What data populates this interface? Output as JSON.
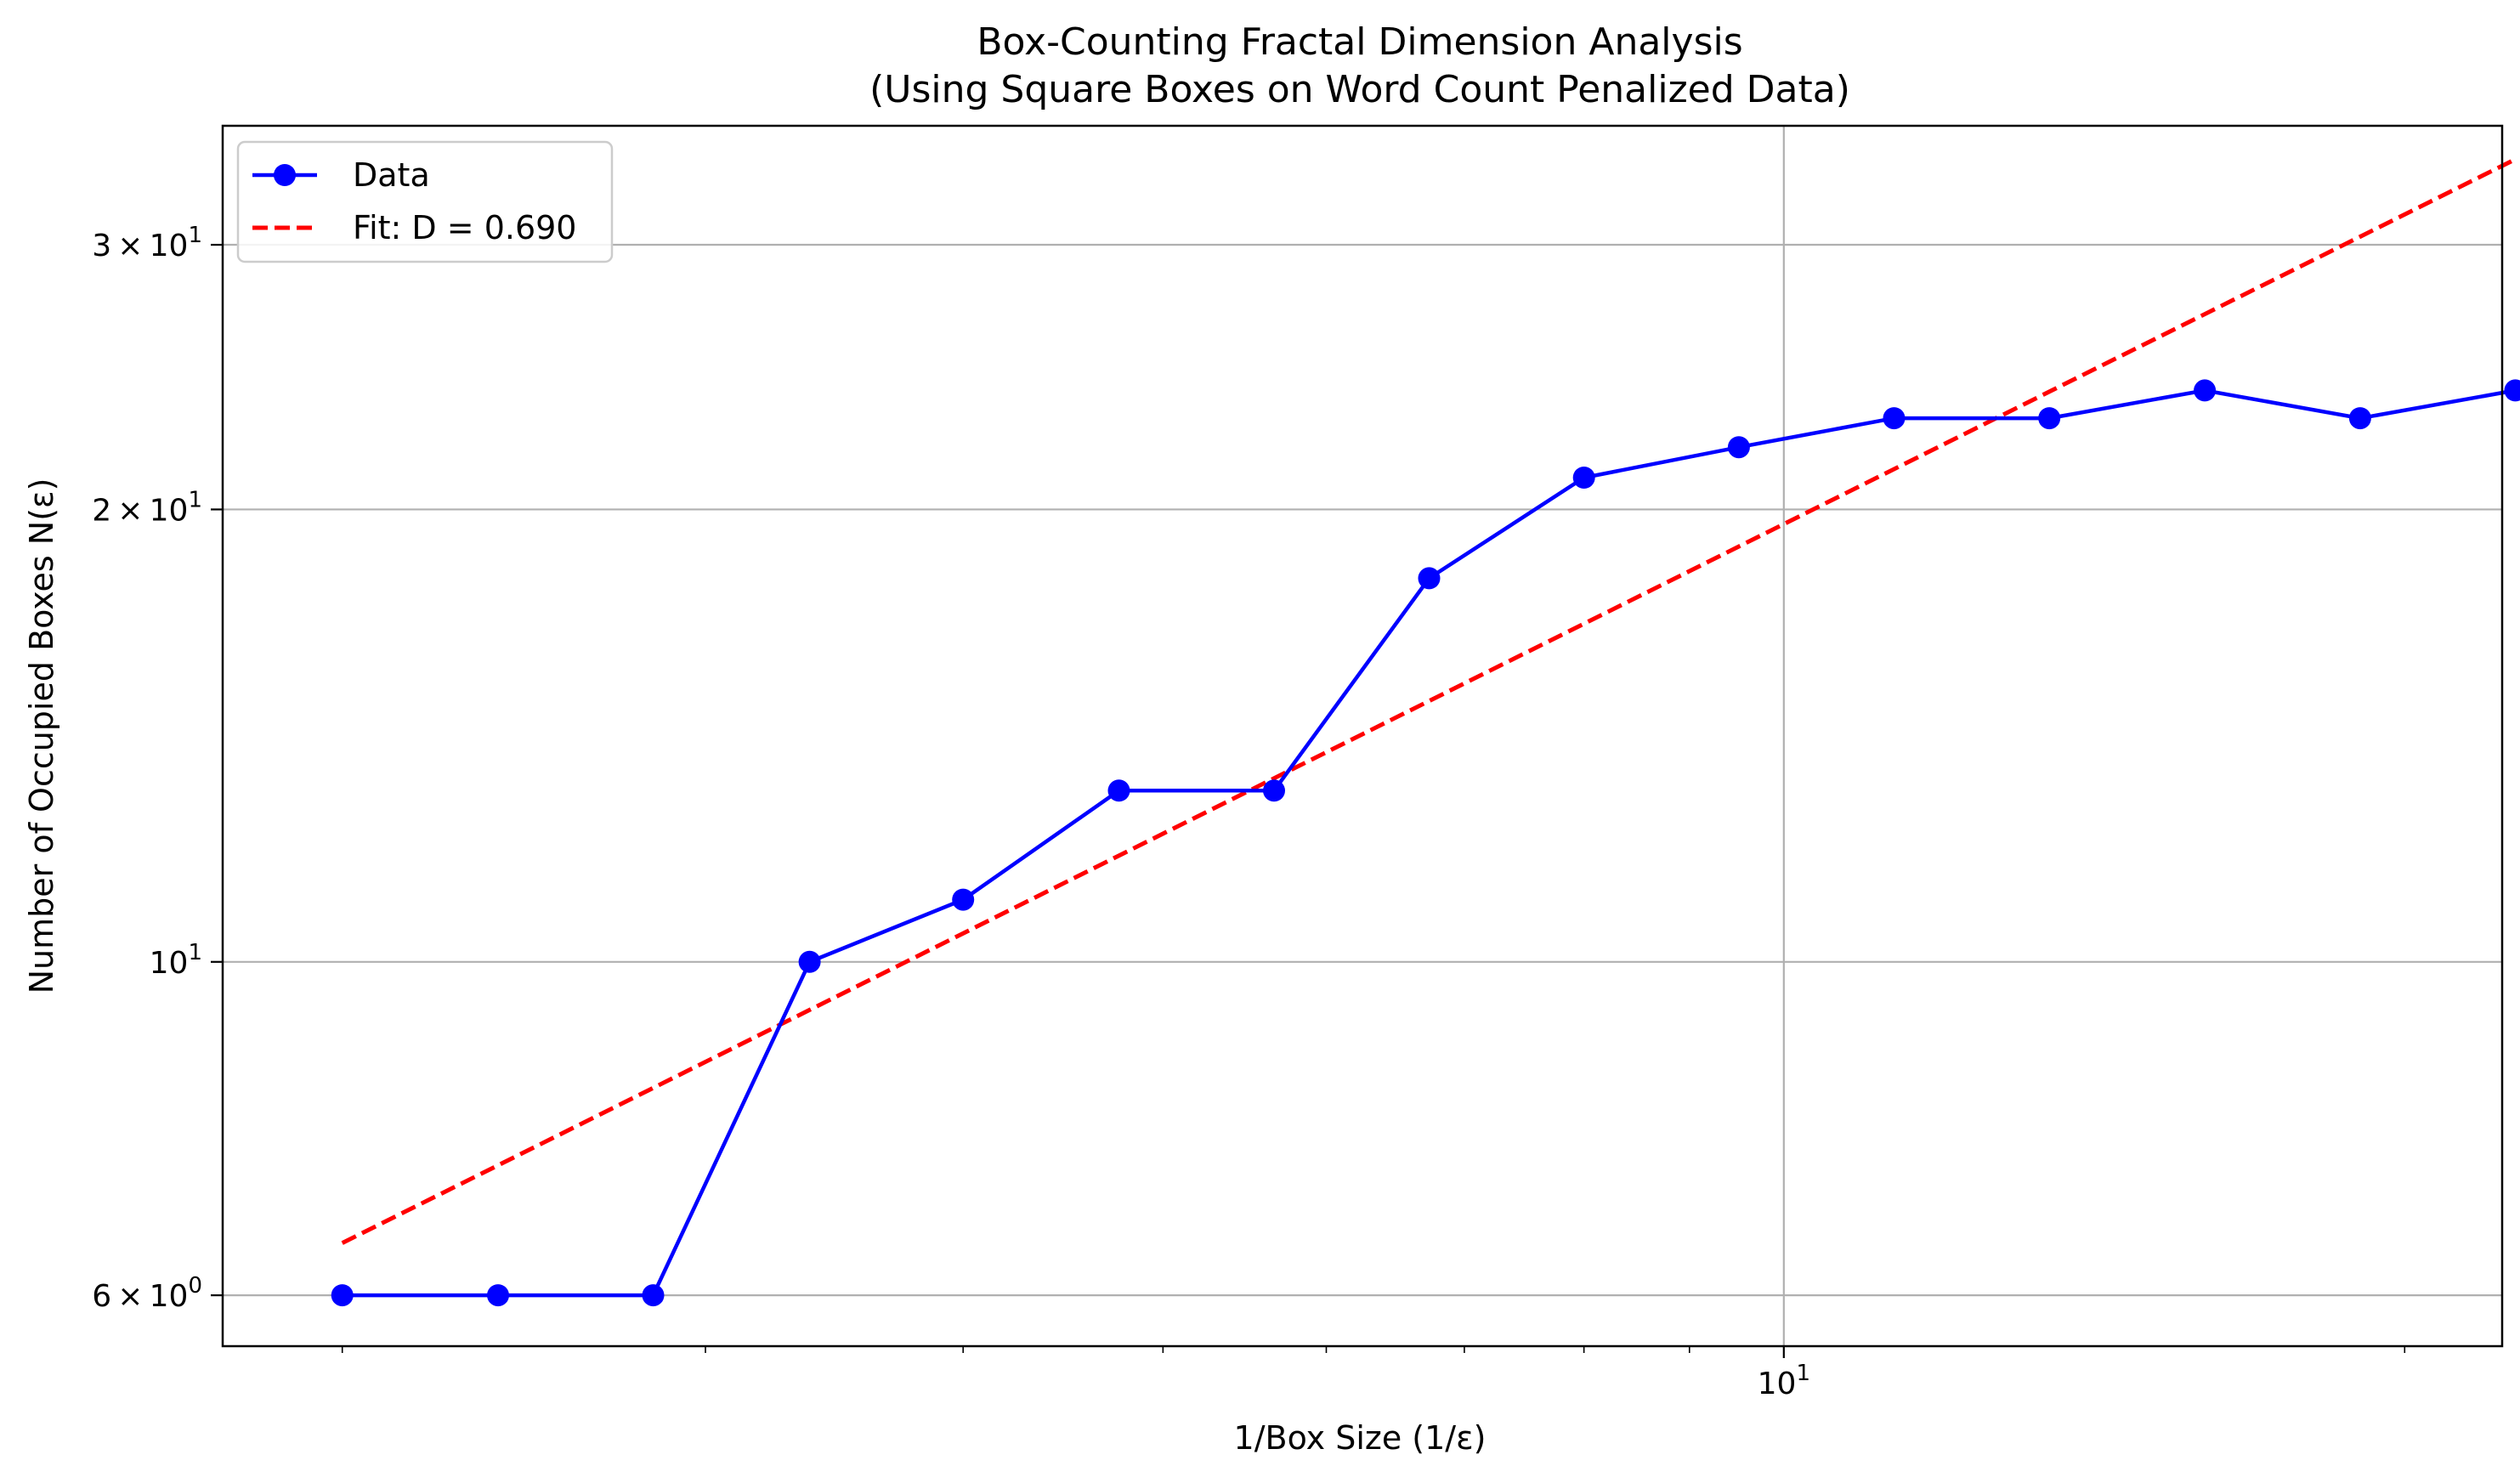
{
  "chart_data": {
    "type": "line",
    "title": "Box-Counting Fractal Dimension Analysis",
    "subtitle": "(Using Square Boxes on Word Count Penalized Data)",
    "xlabel": "1/Box Size (1/ε)",
    "ylabel": "Number of Occupied Boxes N(ε)",
    "xscale": "log",
    "yscale": "log",
    "xlim": [
      1.75,
      22.3
    ],
    "ylim": [
      5.55,
      36.0
    ],
    "grid": "major",
    "legend_position": "top-left",
    "x_major_ticks": [
      {
        "value": 10,
        "base": "10",
        "exp": "1"
      }
    ],
    "y_major_ticks": [
      {
        "value": 6,
        "mant": "6",
        "base": "10",
        "exp": "0"
      },
      {
        "value": 10,
        "mant": "",
        "base": "10",
        "exp": "1"
      },
      {
        "value": 20,
        "mant": "2",
        "base": "10",
        "exp": "1"
      },
      {
        "value": 30,
        "mant": "3",
        "base": "10",
        "exp": "1"
      }
    ],
    "series": [
      {
        "name": "Data",
        "style": "solid line with circle markers",
        "color": "#0000ff",
        "x": [
          2.0,
          2.38,
          2.83,
          3.37,
          4.0,
          4.76,
          5.66,
          6.73,
          8.0,
          9.51,
          11.31,
          13.45,
          16.0,
          19.03,
          22.63
        ],
        "y": [
          6,
          6,
          6,
          10,
          11,
          13,
          13,
          18,
          21,
          22,
          23,
          23,
          24,
          23,
          24
        ]
      },
      {
        "name": "Fit: D = 0.690",
        "style": "dashed line",
        "color": "#ff0000",
        "x": [
          2.0,
          22.63
        ],
        "y": [
          6.5,
          34.2
        ]
      }
    ]
  }
}
